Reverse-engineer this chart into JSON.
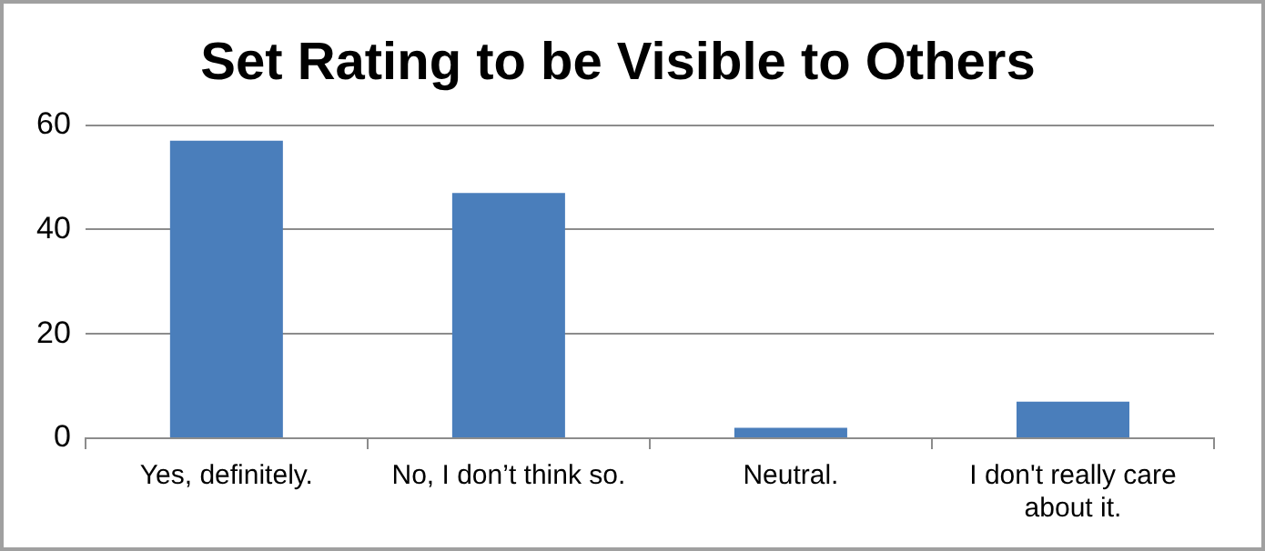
{
  "chart_data": {
    "type": "bar",
    "title": "Set Rating to be Visible to Others",
    "categories": [
      "Yes, definitely.",
      "No, I don’t think so.",
      "Neutral.",
      "I don't really care about it."
    ],
    "values": [
      57,
      47,
      2,
      7
    ],
    "color": "#4a7ebb",
    "ylim": [
      0,
      60
    ],
    "yticks": [
      0,
      20,
      40,
      60
    ],
    "grid": "y"
  }
}
